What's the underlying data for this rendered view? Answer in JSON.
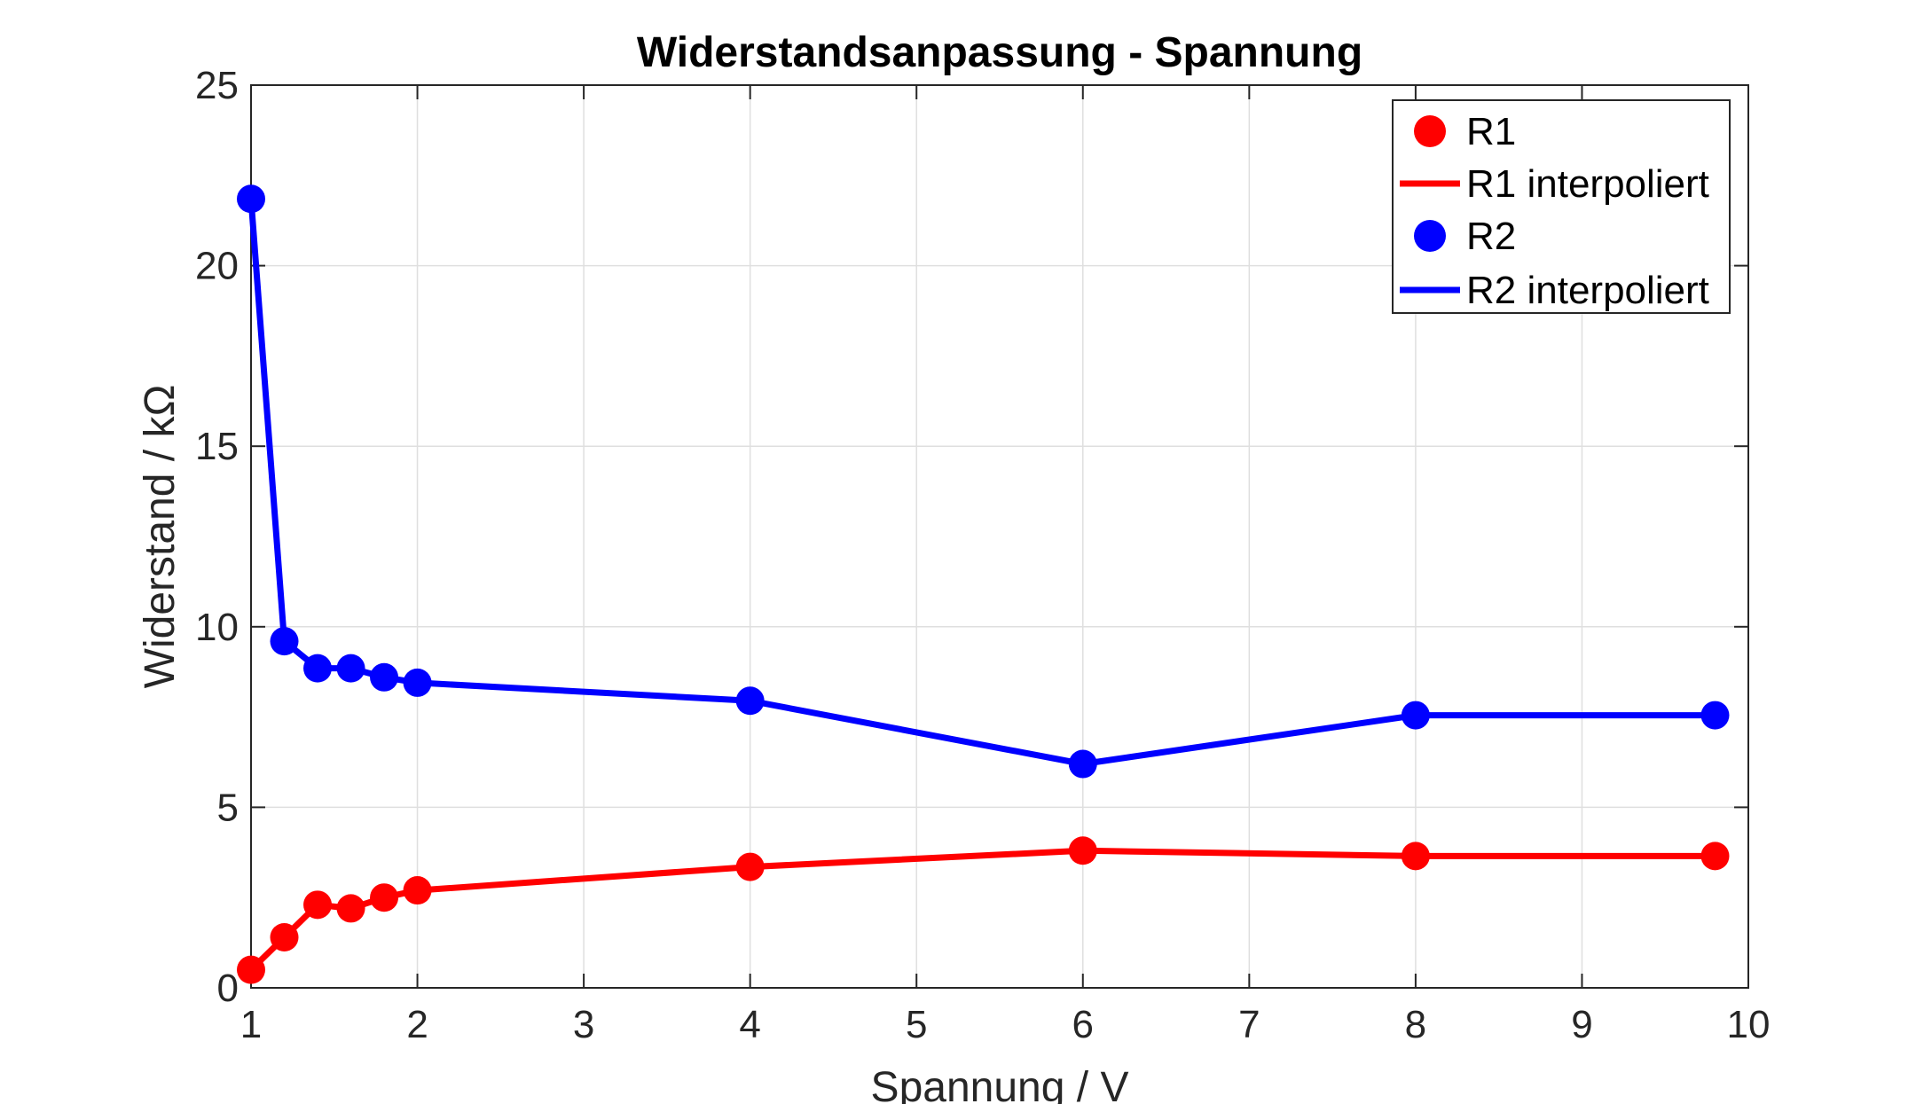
{
  "chart_data": {
    "type": "line",
    "title": "Widerstandsanpassung - Spannung",
    "xlabel": "Spannung / V",
    "ylabel": "Widerstand / kΩ",
    "xlim": [
      1,
      10
    ],
    "ylim": [
      0,
      25
    ],
    "xticks": [
      "1",
      "2",
      "3",
      "4",
      "5",
      "6",
      "7",
      "8",
      "9",
      "10"
    ],
    "yticks": [
      "0",
      "5",
      "10",
      "15",
      "20",
      "25"
    ],
    "grid": true,
    "legend_position": "top-right",
    "series": [
      {
        "name": "R1",
        "line_name": "R1 interpoliert",
        "color": "#ff0000",
        "x": [
          1,
          1.2,
          1.4,
          1.6,
          1.8,
          2,
          4,
          6,
          8,
          9.8
        ],
        "values": [
          0.5,
          1.4,
          2.3,
          2.2,
          2.5,
          2.7,
          3.35,
          3.8,
          3.65,
          3.65
        ]
      },
      {
        "name": "R2",
        "line_name": "R2 interpoliert",
        "color": "#0000ff",
        "x": [
          1,
          1.2,
          1.4,
          1.6,
          1.8,
          2,
          4,
          6,
          8,
          9.8
        ],
        "values": [
          21.85,
          9.6,
          8.85,
          8.85,
          8.6,
          8.45,
          7.95,
          6.2,
          7.55,
          7.55
        ]
      }
    ]
  }
}
